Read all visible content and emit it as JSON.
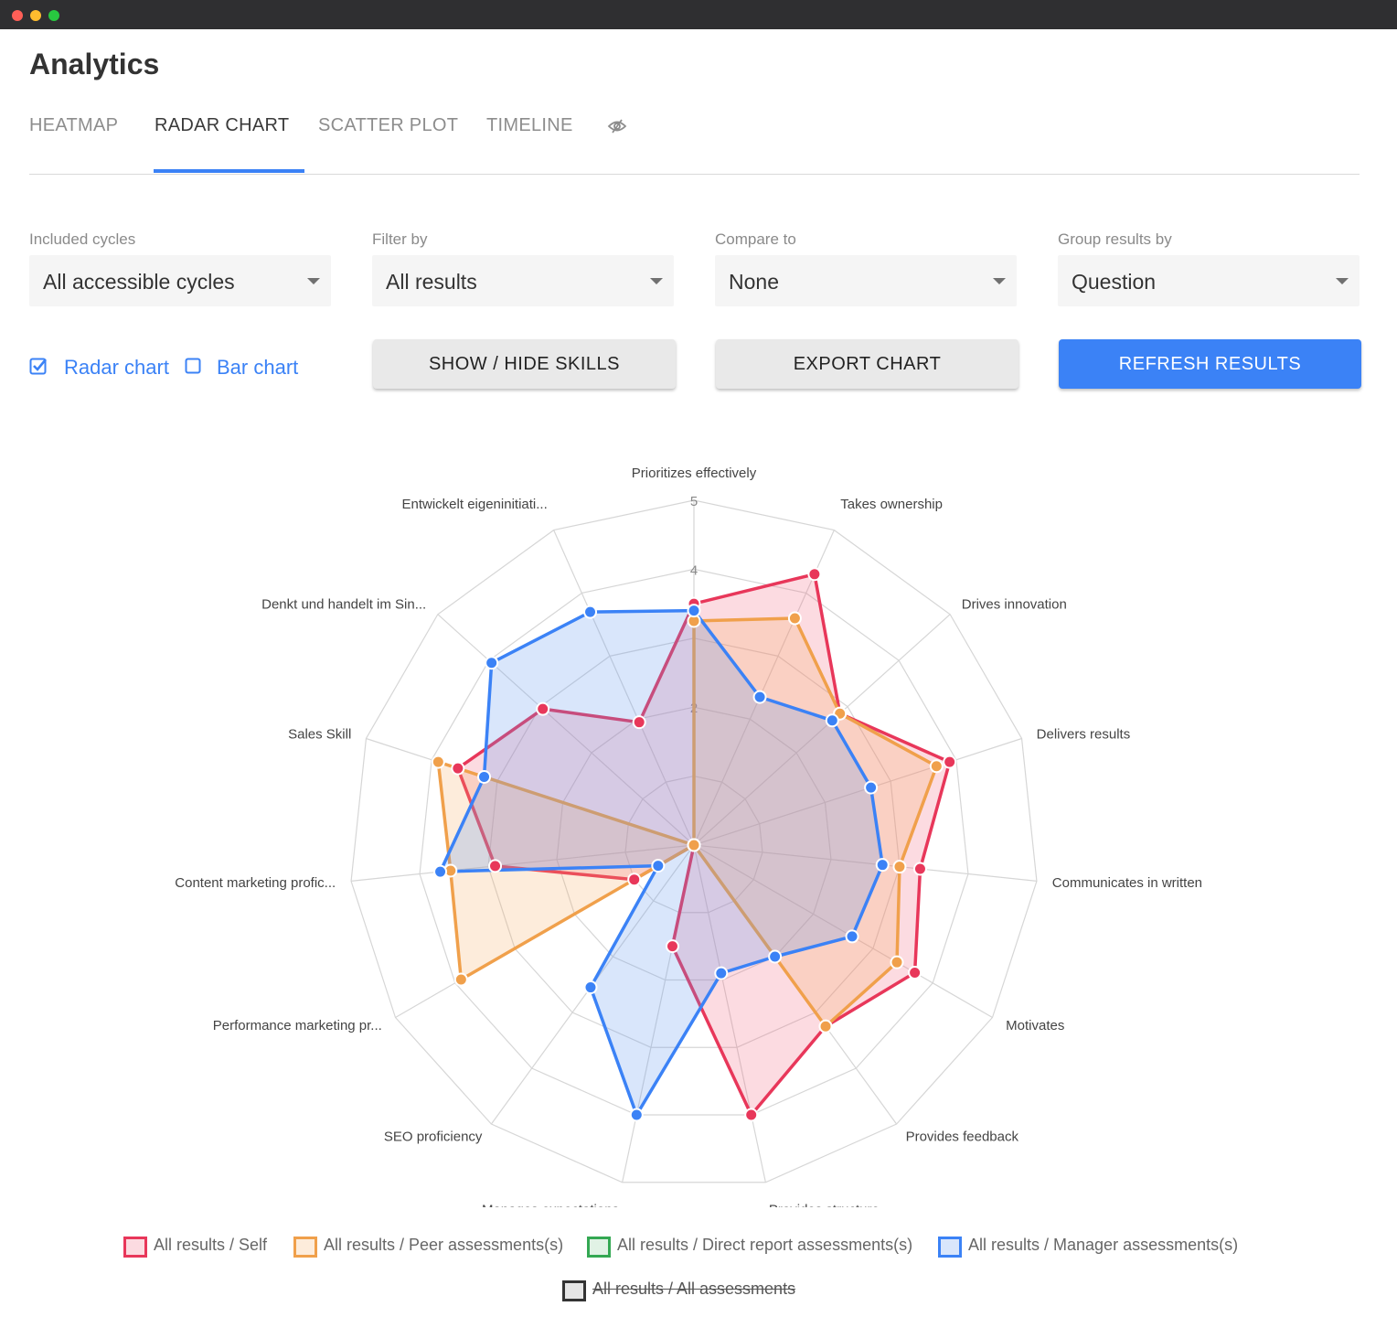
{
  "window": {
    "title": "Analytics"
  },
  "tabs": [
    {
      "label": "HEATMAP",
      "active": false
    },
    {
      "label": "RADAR CHART",
      "active": true
    },
    {
      "label": "SCATTER PLOT",
      "active": false
    },
    {
      "label": "TIMELINE",
      "active": false
    }
  ],
  "tabs_extra_icon": "eye-slash-icon",
  "filters": [
    {
      "label": "Included cycles",
      "value": "All accessible cycles"
    },
    {
      "label": "Filter by",
      "value": "All results"
    },
    {
      "label": "Compare to",
      "value": "None"
    },
    {
      "label": "Group results by",
      "value": "Question"
    }
  ],
  "chart_type_toggle": [
    {
      "label": "Radar chart",
      "checked": true
    },
    {
      "label": "Bar chart",
      "checked": false
    }
  ],
  "buttons": {
    "show_hide_skills": "SHOW / HIDE SKILLS",
    "export_chart": "EXPORT CHART",
    "refresh_results": "REFRESH RESULTS"
  },
  "colors": {
    "accent": "#3b82f6"
  },
  "chart_data": {
    "type": "radar",
    "axes": [
      "Prioritizes effectively",
      "Takes ownership",
      "Drives innovation",
      "Delivers results",
      "Communicates in written",
      "Motivates",
      "Provides feedback",
      "Provides structure",
      "Manages expectations",
      "SEO proficiency",
      "Performance marketing pr...",
      "Content marketing profic...",
      "Sales Skill",
      "Denkt und handelt im Sin...",
      "Entwickelt eigeninitiati..."
    ],
    "scale": {
      "min": 0,
      "max": 5,
      "ticks": [
        0,
        1,
        2,
        3,
        4,
        5
      ],
      "tick_labels_shown": [
        "2",
        "4",
        "5"
      ]
    },
    "series": [
      {
        "name": "All results / Self",
        "color": "#e8375a",
        "fill": "rgba(240,90,120,0.22)",
        "hidden": false,
        "values": [
          3.5,
          4.3,
          2.85,
          3.9,
          3.3,
          3.7,
          3.25,
          4.0,
          1.5,
          0,
          1.0,
          2.9,
          3.6,
          2.95,
          1.95
        ]
      },
      {
        "name": "All results / Peer assessments(s)",
        "color": "#f0a04b",
        "fill": "rgba(245,170,90,0.22)",
        "hidden": false,
        "values": [
          3.25,
          3.6,
          2.85,
          3.7,
          3.0,
          3.4,
          3.25,
          0,
          0,
          0,
          3.9,
          3.55,
          3.9,
          0,
          0
        ]
      },
      {
        "name": "All results / Direct report assessments(s)",
        "color": "#34a853",
        "fill": "rgba(52,168,83,0.15)",
        "hidden": false,
        "values": []
      },
      {
        "name": "All results / Manager assessments(s)",
        "color": "#3b82f6",
        "fill": "rgba(96,150,240,0.24)",
        "hidden": false,
        "values": [
          3.4,
          2.35,
          2.7,
          2.7,
          2.75,
          2.65,
          2.0,
          1.9,
          4.0,
          2.55,
          0.6,
          3.7,
          3.2,
          3.95,
          3.7
        ]
      },
      {
        "name": "All results / All assessments",
        "color": "#333333",
        "fill": "rgba(80,80,80,0.15)",
        "hidden": true,
        "values": []
      }
    ]
  }
}
